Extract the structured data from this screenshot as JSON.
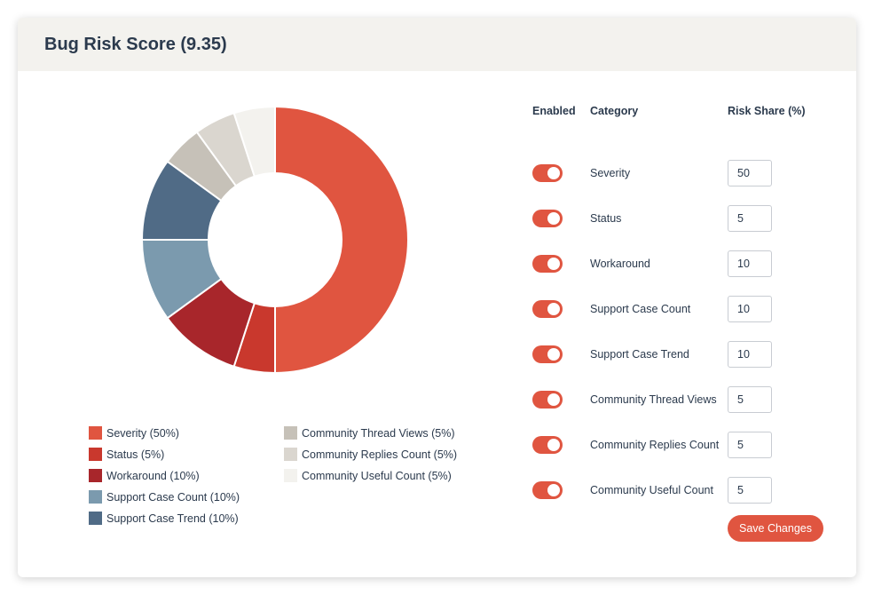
{
  "header": {
    "title": "Bug Risk Score (9.35)"
  },
  "chart_data": {
    "type": "pie",
    "subtype": "donut",
    "categories": [
      "Severity",
      "Status",
      "Workaround",
      "Support Case Count",
      "Support Case Trend",
      "Community Thread Views",
      "Community Replies Count",
      "Community Useful Count"
    ],
    "values": [
      50,
      5,
      10,
      10,
      10,
      5,
      5,
      5
    ],
    "colors": [
      "#e05540",
      "#c9382d",
      "#a8262b",
      "#7b9aae",
      "#506b86",
      "#c6c1b8",
      "#dad6cf",
      "#f3f2ee"
    ],
    "legend": [
      {
        "label": "Severity (50%)",
        "color": "#e05540"
      },
      {
        "label": "Status (5%)",
        "color": "#c9382d"
      },
      {
        "label": "Workaround (10%)",
        "color": "#a8262b"
      },
      {
        "label": "Support Case Count (10%)",
        "color": "#7b9aae"
      },
      {
        "label": "Support Case Trend (10%)",
        "color": "#506b86"
      },
      {
        "label": "Community Thread Views (5%)",
        "color": "#c6c1b8"
      },
      {
        "label": "Community Replies Count (5%)",
        "color": "#dad6cf"
      },
      {
        "label": "Community Useful Count (5%)",
        "color": "#f3f2ee"
      }
    ],
    "legend_placement": "bottom"
  },
  "settings": {
    "columns": {
      "enabled": "Enabled",
      "category": "Category",
      "share": "Risk Share (%)"
    },
    "rows": [
      {
        "category": "Severity",
        "share": "50",
        "enabled": true
      },
      {
        "category": "Status",
        "share": "5",
        "enabled": true
      },
      {
        "category": "Workaround",
        "share": "10",
        "enabled": true
      },
      {
        "category": "Support Case Count",
        "share": "10",
        "enabled": true
      },
      {
        "category": "Support Case Trend",
        "share": "10",
        "enabled": true
      },
      {
        "category": "Community Thread Views",
        "share": "5",
        "enabled": true
      },
      {
        "category": "Community Replies Count",
        "share": "5",
        "enabled": true
      },
      {
        "category": "Community Useful Count",
        "share": "5",
        "enabled": true
      }
    ],
    "save_label": "Save Changes",
    "accent_color": "#e05540"
  }
}
